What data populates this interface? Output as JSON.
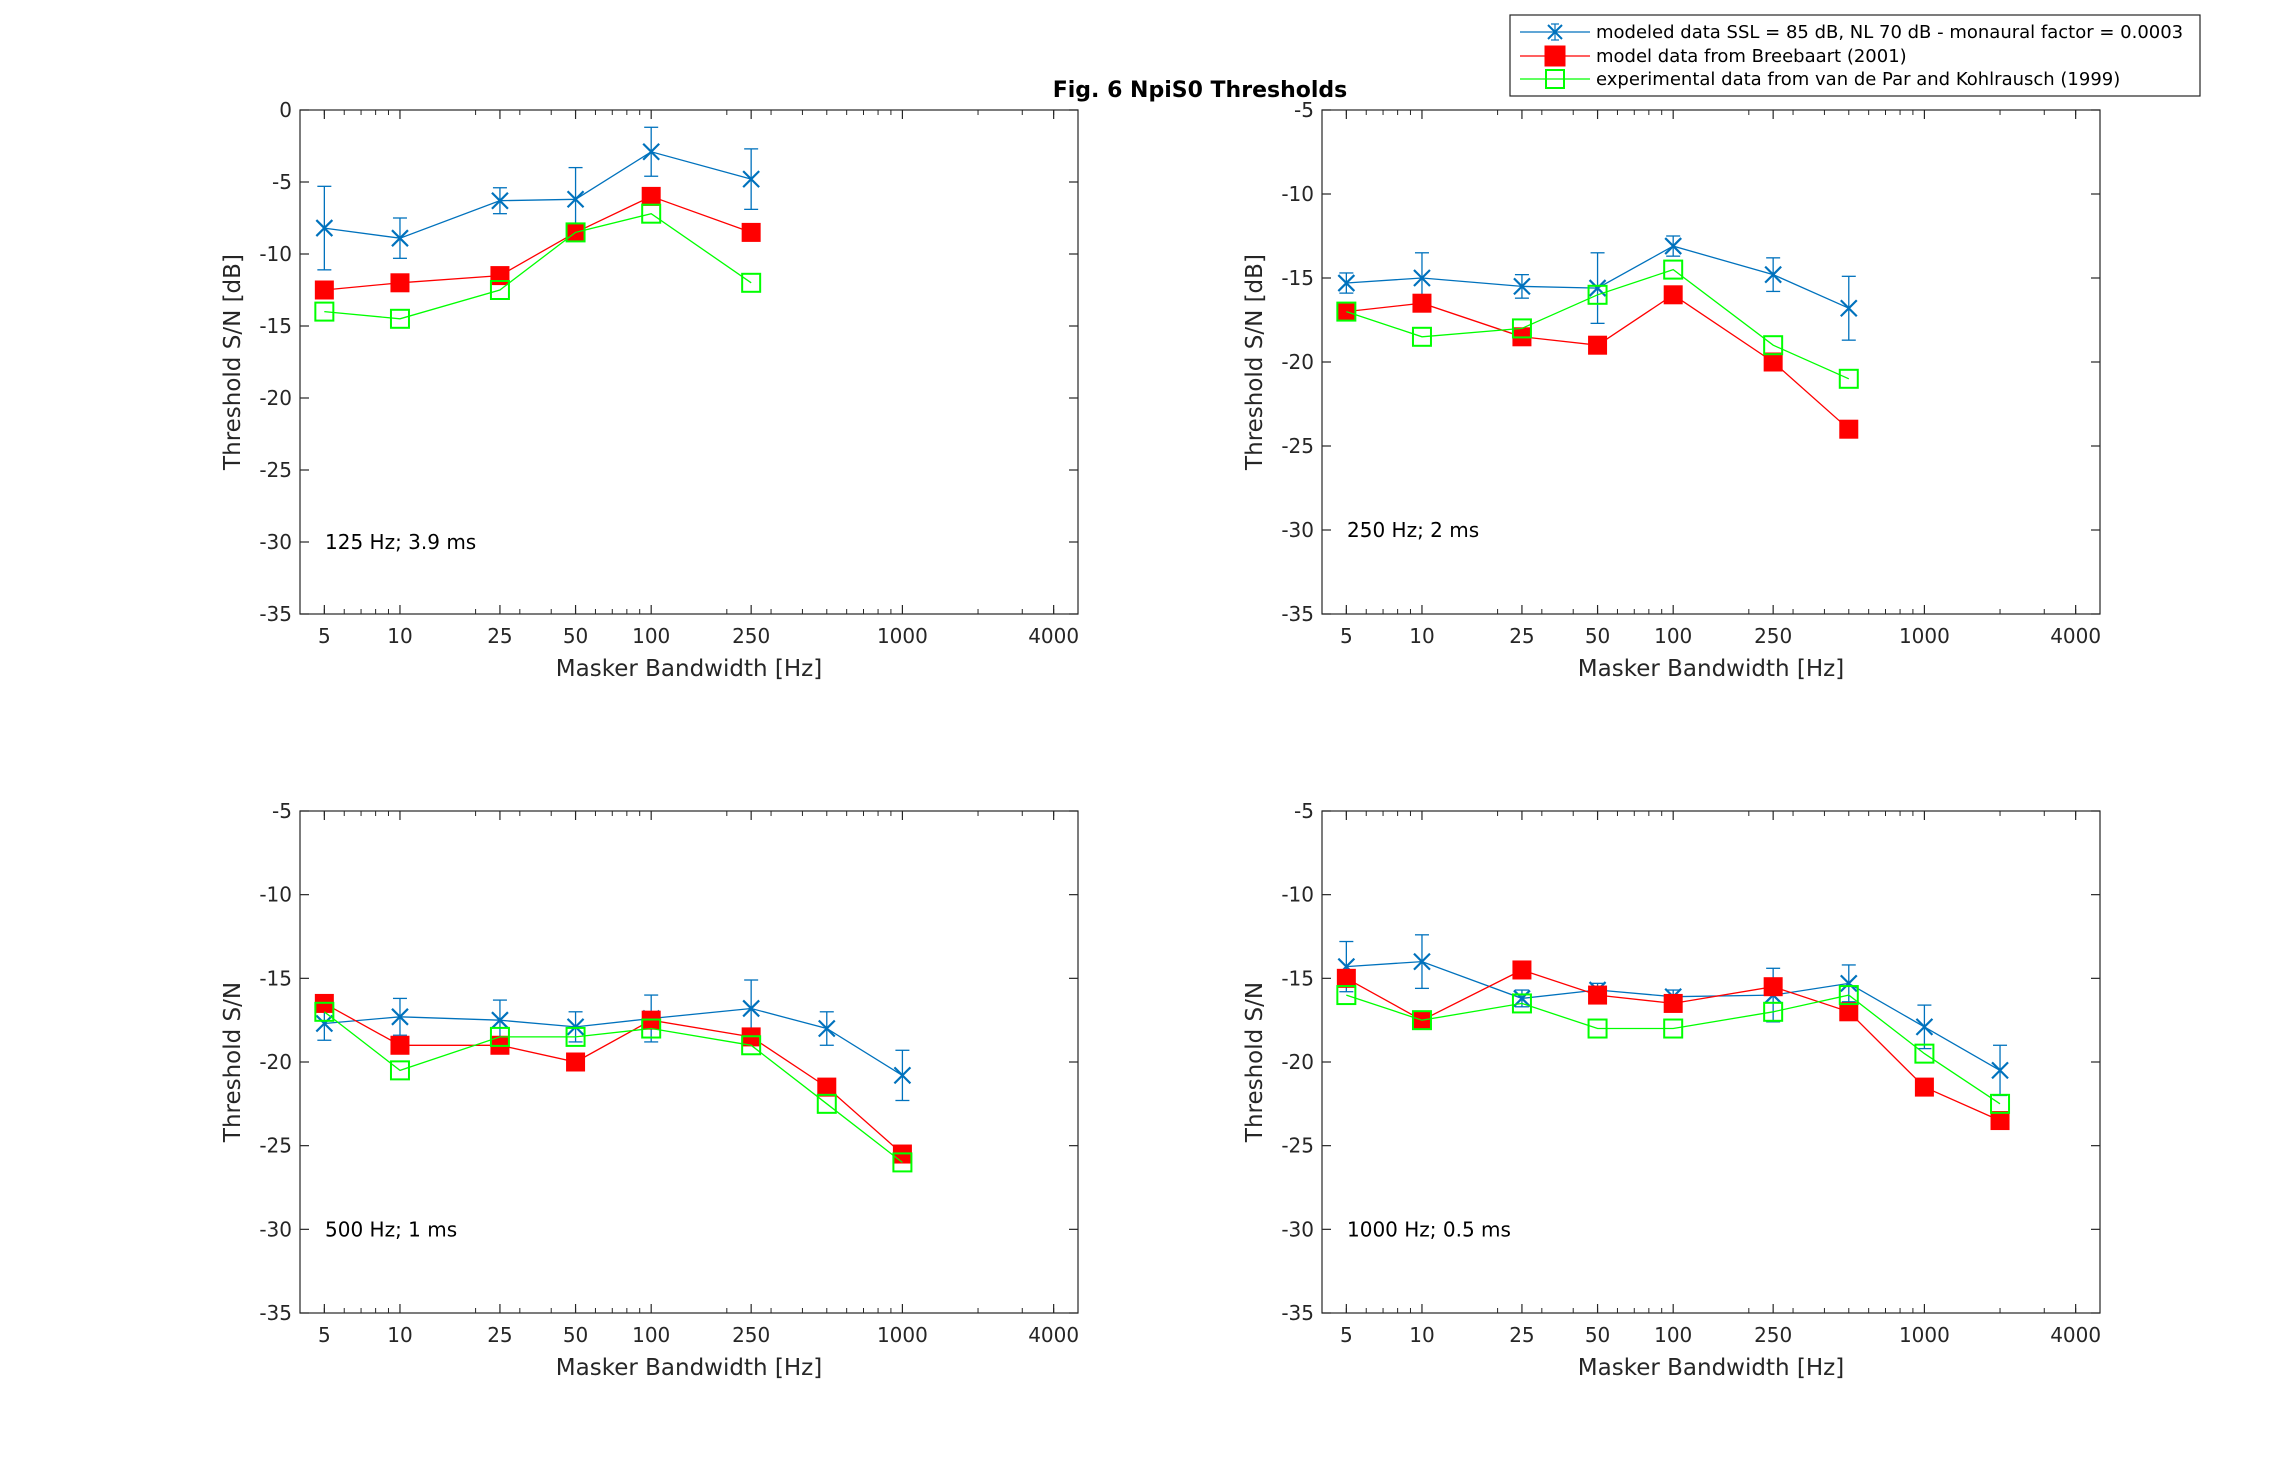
{
  "figure_title": "Fig. 6 NpiS0 Thresholds",
  "legend": {
    "entries": [
      {
        "label": "modeled data SSL = 85 dB, NL 70 dB  - monaural factor = 0.0003",
        "color": "#0072BD",
        "marker": "x-errorbar"
      },
      {
        "label": "model data from Breebaart (2001)",
        "color": "#FF0000",
        "marker": "filled-square"
      },
      {
        "label": "experimental data from van de Par and Kohlrausch (1999)",
        "color": "#00FF00",
        "marker": "open-square"
      }
    ]
  },
  "chart_data": [
    {
      "type": "line",
      "annotation": "125 Hz; 3.9 ms",
      "xlabel": "Masker Bandwidth [Hz]",
      "ylabel": "Threshold S/N [dB]",
      "xscale": "log",
      "xlim": [
        4,
        5000
      ],
      "ylim": [
        -35,
        0
      ],
      "xticks": [
        5,
        10,
        25,
        50,
        100,
        250,
        1000,
        4000
      ],
      "xtick_labels": [
        "5",
        "10",
        "25",
        "50",
        "100",
        "250",
        "1000",
        "4000"
      ],
      "yticks": [
        0,
        -5,
        -10,
        -15,
        -20,
        -25,
        -30,
        -35
      ],
      "ytick_labels": [
        "0",
        "-5",
        "-10",
        "-15",
        "-20",
        "-25",
        "-30",
        "-35"
      ],
      "series": [
        {
          "name": "modeled",
          "x": [
            5,
            10,
            25,
            50,
            100,
            250
          ],
          "y": [
            -8.2,
            -8.9,
            -6.3,
            -6.2,
            -2.9,
            -4.8
          ],
          "err": [
            2.9,
            1.4,
            0.9,
            2.2,
            1.7,
            2.1
          ]
        },
        {
          "name": "breebaart",
          "x": [
            5,
            10,
            25,
            50,
            100,
            250
          ],
          "y": [
            -12.5,
            -12.0,
            -11.5,
            -8.5,
            -6.0,
            -8.5
          ]
        },
        {
          "name": "experimental",
          "x": [
            5,
            10,
            25,
            50,
            100,
            250
          ],
          "y": [
            -14.0,
            -14.5,
            -12.5,
            -8.5,
            -7.2,
            -12.0
          ]
        }
      ]
    },
    {
      "type": "line",
      "annotation": "250 Hz; 2 ms",
      "xlabel": "Masker Bandwidth [Hz]",
      "ylabel": "Threshold S/N [dB]",
      "xscale": "log",
      "xlim": [
        4,
        5000
      ],
      "ylim": [
        -35,
        -5
      ],
      "xticks": [
        5,
        10,
        25,
        50,
        100,
        250,
        1000,
        4000
      ],
      "xtick_labels": [
        "5",
        "10",
        "25",
        "50",
        "100",
        "250",
        "1000",
        "4000"
      ],
      "yticks": [
        -5,
        -10,
        -15,
        -20,
        -25,
        -30,
        -35
      ],
      "ytick_labels": [
        "-5",
        "-10",
        "-15",
        "-20",
        "-25",
        "-30",
        "-35"
      ],
      "series": [
        {
          "name": "modeled",
          "x": [
            5,
            10,
            25,
            50,
            100,
            250,
            500
          ],
          "y": [
            -15.3,
            -15.0,
            -15.5,
            -15.6,
            -13.1,
            -14.8,
            -16.8
          ],
          "err": [
            0.6,
            1.5,
            0.7,
            2.1,
            0.6,
            1.0,
            1.9
          ]
        },
        {
          "name": "breebaart",
          "x": [
            5,
            10,
            25,
            50,
            100,
            250,
            500
          ],
          "y": [
            -17.0,
            -16.5,
            -18.5,
            -19.0,
            -16.0,
            -20.0,
            -24.0
          ]
        },
        {
          "name": "experimental",
          "x": [
            5,
            10,
            25,
            50,
            100,
            250,
            500
          ],
          "y": [
            -17.0,
            -18.5,
            -18.0,
            -16.0,
            -14.5,
            -19.0,
            -21.0
          ]
        }
      ]
    },
    {
      "type": "line",
      "annotation": "500 Hz; 1 ms",
      "xlabel": "Masker Bandwidth [Hz]",
      "ylabel": "Threshold S/N",
      "xscale": "log",
      "xlim": [
        4,
        5000
      ],
      "ylim": [
        -35,
        -5
      ],
      "xticks": [
        5,
        10,
        25,
        50,
        100,
        250,
        1000,
        4000
      ],
      "xtick_labels": [
        "5",
        "10",
        "25",
        "50",
        "100",
        "250",
        "1000",
        "4000"
      ],
      "yticks": [
        -5,
        -10,
        -15,
        -20,
        -25,
        -30,
        -35
      ],
      "ytick_labels": [
        "-5",
        "-10",
        "-15",
        "-20",
        "-25",
        "-30",
        "-35"
      ],
      "series": [
        {
          "name": "modeled",
          "x": [
            5,
            10,
            25,
            50,
            100,
            250,
            500,
            1000
          ],
          "y": [
            -17.7,
            -17.3,
            -17.5,
            -17.9,
            -17.4,
            -16.8,
            -18.0,
            -20.8
          ],
          "err": [
            1.0,
            1.1,
            1.2,
            0.9,
            1.4,
            1.7,
            1.0,
            1.5
          ]
        },
        {
          "name": "breebaart",
          "x": [
            5,
            10,
            25,
            50,
            100,
            250,
            500,
            1000
          ],
          "y": [
            -16.5,
            -19.0,
            -19.0,
            -20.0,
            -17.5,
            -18.5,
            -21.5,
            -25.5
          ]
        },
        {
          "name": "experimental",
          "x": [
            5,
            10,
            25,
            50,
            100,
            250,
            500,
            1000
          ],
          "y": [
            -17.0,
            -20.5,
            -18.5,
            -18.5,
            -18.0,
            -19.0,
            -22.5,
            -26.0
          ]
        }
      ]
    },
    {
      "type": "line",
      "annotation": "1000 Hz; 0.5 ms",
      "xlabel": "Masker Bandwidth [Hz]",
      "ylabel": "Threshold S/N",
      "xscale": "log",
      "xlim": [
        4,
        5000
      ],
      "ylim": [
        -35,
        -5
      ],
      "xticks": [
        5,
        10,
        25,
        50,
        100,
        250,
        1000,
        4000
      ],
      "xtick_labels": [
        "5",
        "10",
        "25",
        "50",
        "100",
        "250",
        "1000",
        "4000"
      ],
      "yticks": [
        -5,
        -10,
        -15,
        -20,
        -25,
        -30,
        -35
      ],
      "ytick_labels": [
        "-5",
        "-10",
        "-15",
        "-20",
        "-25",
        "-30",
        "-35"
      ],
      "series": [
        {
          "name": "modeled",
          "x": [
            5,
            10,
            25,
            50,
            100,
            250,
            500,
            1000,
            2000
          ],
          "y": [
            -14.3,
            -14.0,
            -16.2,
            -15.7,
            -16.1,
            -16.0,
            -15.3,
            -17.9,
            -20.5
          ],
          "err": [
            1.5,
            1.6,
            0.5,
            0.4,
            0.4,
            1.6,
            1.1,
            1.3,
            1.5
          ]
        },
        {
          "name": "breebaart",
          "x": [
            5,
            10,
            25,
            50,
            100,
            250,
            500,
            1000,
            2000
          ],
          "y": [
            -15.0,
            -17.5,
            -14.5,
            -16.0,
            -16.5,
            -15.5,
            -17.0,
            -21.5,
            -23.5
          ]
        },
        {
          "name": "experimental",
          "x": [
            5,
            10,
            25,
            50,
            100,
            250,
            500,
            1000,
            2000
          ],
          "y": [
            -16.0,
            -17.5,
            -16.5,
            -18.0,
            -18.0,
            -17.0,
            -16.0,
            -19.5,
            -22.5
          ]
        }
      ]
    }
  ]
}
